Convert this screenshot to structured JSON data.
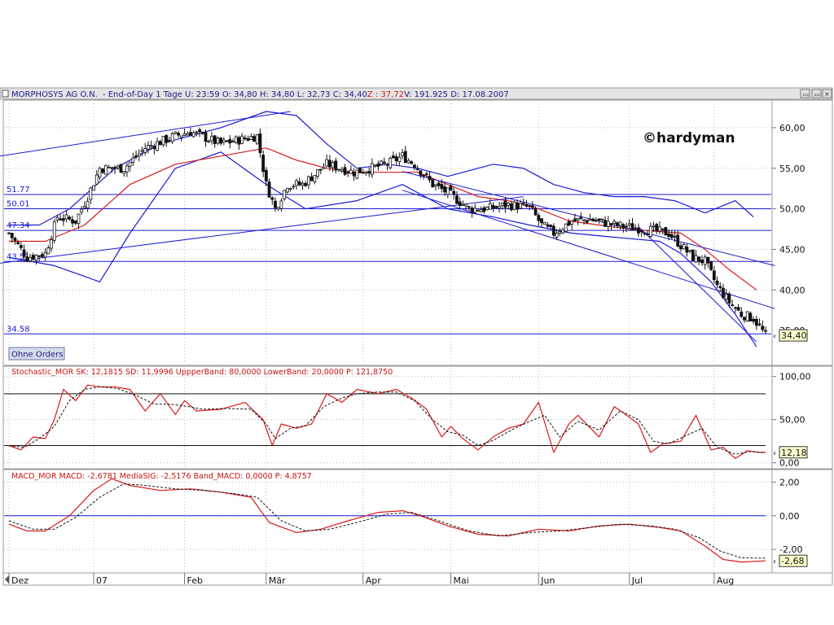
{
  "header": {
    "symbol": "MORPHOSYS AG O.N.",
    "info": " - End-of-Day 1 Tage  U: 23:59  O: 34,80  H: 34,80  L: 32,73  C: 34,40  ",
    "z_text": "Z : 37,72",
    "info2": "  V: 191.925  D: 17.08.2007",
    "buttons": [
      "▭",
      "▭",
      "✕"
    ]
  },
  "watermark": "©hardyman",
  "ohne_orders": "Ohne Orders",
  "colors": {
    "band": "#1a1ad6",
    "ma": "#d81a1a",
    "grid": "#b8b8b8",
    "header_bg": "#e4e4e4",
    "label_bg": "#ffffcc"
  },
  "chart_data": [
    {
      "type": "candlestick",
      "ylim": [
        31,
        63
      ],
      "yticks": [
        40,
        45,
        50,
        55,
        60
      ],
      "ytick_labels": [
        "40,00",
        "45,00",
        "50,00",
        "55,00",
        "60,00"
      ],
      "top_partial_tick": "35,00",
      "last_value_label": "34,40",
      "last_value": 34.4,
      "levels": [
        {
          "label": "51.77",
          "value": 51.77
        },
        {
          "label": "50.01",
          "value": 50.01
        },
        {
          "label": "47.34",
          "value": 47.34
        },
        {
          "label": "43.51",
          "value": 43.51
        },
        {
          "label": "34.58",
          "value": 34.58
        }
      ],
      "x_labels": [
        "Dez",
        "07",
        "Feb",
        "Mär",
        "Apr",
        "Mai",
        "Jun",
        "Jul",
        "Aug"
      ],
      "x_label_positions": [
        0,
        28,
        58,
        85,
        117,
        146,
        175,
        205,
        233
      ],
      "n_bars": 251,
      "close_anchors": [
        [
          0,
          47
        ],
        [
          6,
          44
        ],
        [
          12,
          44.5
        ],
        [
          16,
          49
        ],
        [
          22,
          48.5
        ],
        [
          26,
          51.5
        ],
        [
          30,
          55
        ],
        [
          38,
          55
        ],
        [
          45,
          57.5
        ],
        [
          55,
          59
        ],
        [
          60,
          59.5
        ],
        [
          70,
          58
        ],
        [
          82,
          59
        ],
        [
          85,
          53
        ],
        [
          88,
          50
        ],
        [
          92,
          53
        ],
        [
          97,
          53
        ],
        [
          105,
          55.5
        ],
        [
          114,
          54.5
        ],
        [
          125,
          55.5
        ],
        [
          130,
          56.5
        ],
        [
          134,
          55.5
        ],
        [
          140,
          53
        ],
        [
          145,
          52
        ],
        [
          152,
          50
        ],
        [
          158,
          50
        ],
        [
          165,
          50.5
        ],
        [
          172,
          50.2
        ],
        [
          176,
          48
        ],
        [
          180,
          47
        ],
        [
          186,
          48.5
        ],
        [
          192,
          48.7
        ],
        [
          200,
          48
        ],
        [
          210,
          47.5
        ],
        [
          218,
          47
        ],
        [
          222,
          45.5
        ],
        [
          226,
          44
        ],
        [
          230,
          43.5
        ],
        [
          234,
          40.5
        ],
        [
          238,
          38.5
        ],
        [
          242,
          37
        ],
        [
          246,
          36.5
        ],
        [
          250,
          34.4
        ]
      ],
      "bollinger_upper": [
        [
          0,
          48
        ],
        [
          10,
          48
        ],
        [
          20,
          50
        ],
        [
          35,
          55
        ],
        [
          50,
          58
        ],
        [
          70,
          60
        ],
        [
          85,
          62
        ],
        [
          95,
          61.5
        ],
        [
          105,
          58
        ],
        [
          115,
          55
        ],
        [
          125,
          55.5
        ],
        [
          135,
          55
        ],
        [
          145,
          54
        ],
        [
          160,
          55.5
        ],
        [
          170,
          55
        ],
        [
          180,
          53
        ],
        [
          190,
          52
        ],
        [
          200,
          51.5
        ],
        [
          210,
          51.5
        ],
        [
          220,
          51
        ],
        [
          230,
          49.5
        ],
        [
          240,
          51
        ],
        [
          246,
          49
        ]
      ],
      "bollinger_lower": [
        [
          0,
          44
        ],
        [
          15,
          43
        ],
        [
          30,
          41
        ],
        [
          40,
          47
        ],
        [
          55,
          55
        ],
        [
          70,
          57
        ],
        [
          85,
          53
        ],
        [
          98,
          50
        ],
        [
          115,
          51
        ],
        [
          130,
          53
        ],
        [
          145,
          50
        ],
        [
          160,
          49
        ],
        [
          172,
          48
        ],
        [
          186,
          47
        ],
        [
          200,
          46.5
        ],
        [
          215,
          46
        ],
        [
          222,
          44.5
        ],
        [
          232,
          41
        ],
        [
          240,
          37
        ],
        [
          247,
          33
        ]
      ],
      "moving_average": [
        [
          0,
          46
        ],
        [
          12,
          46
        ],
        [
          25,
          48
        ],
        [
          40,
          53
        ],
        [
          55,
          55.5
        ],
        [
          70,
          56.5
        ],
        [
          85,
          57.5
        ],
        [
          95,
          56
        ],
        [
          105,
          55
        ],
        [
          115,
          54.5
        ],
        [
          125,
          54.5
        ],
        [
          135,
          54.5
        ],
        [
          145,
          53
        ],
        [
          155,
          51.5
        ],
        [
          165,
          51
        ],
        [
          175,
          50
        ],
        [
          185,
          48.5
        ],
        [
          195,
          48
        ],
        [
          205,
          47.5
        ],
        [
          215,
          47.2
        ],
        [
          222,
          47
        ],
        [
          230,
          45
        ],
        [
          238,
          42.5
        ],
        [
          247,
          40
        ]
      ],
      "trendlines": [
        {
          "from": [
            -3,
            56.5
          ],
          "to": [
            93,
            62
          ]
        },
        {
          "from": [
            -3,
            43.3
          ],
          "to": [
            170,
            51.5
          ]
        },
        {
          "from": [
            130,
            54.6
          ],
          "to": [
            253,
            43
          ]
        },
        {
          "from": [
            130,
            52.3
          ],
          "to": [
            253,
            37.7
          ]
        },
        {
          "from": [
            208,
            47.8
          ],
          "to": [
            247,
            33.6
          ]
        }
      ]
    },
    {
      "type": "line",
      "title": "Stochastic_MOR  SK: 12,1815  SD: 11,9996  UppperBand: 80,0000  LowerBand: 20,0000  P: 121,8750",
      "ylim": [
        -5,
        110
      ],
      "yticks": [
        0,
        50,
        100
      ],
      "ytick_labels": [
        "0,00",
        "50,00",
        "100,00"
      ],
      "bands": [
        20,
        80
      ],
      "last_value_label": "12,18",
      "series": [
        {
          "name": "SK",
          "points": [
            [
              0,
              20
            ],
            [
              4,
              15
            ],
            [
              8,
              30
            ],
            [
              12,
              28
            ],
            [
              15,
              50
            ],
            [
              18,
              85
            ],
            [
              22,
              72
            ],
            [
              26,
              90
            ],
            [
              30,
              88
            ],
            [
              35,
              88
            ],
            [
              40,
              85
            ],
            [
              45,
              60
            ],
            [
              50,
              80
            ],
            [
              55,
              56
            ],
            [
              58,
              72
            ],
            [
              62,
              60
            ],
            [
              70,
              62
            ],
            [
              78,
              70
            ],
            [
              84,
              50
            ],
            [
              87,
              20
            ],
            [
              90,
              45
            ],
            [
              95,
              40
            ],
            [
              100,
              45
            ],
            [
              105,
              80
            ],
            [
              110,
              70
            ],
            [
              115,
              85
            ],
            [
              122,
              80
            ],
            [
              128,
              85
            ],
            [
              133,
              75
            ],
            [
              138,
              62
            ],
            [
              143,
              30
            ],
            [
              146,
              42
            ],
            [
              150,
              28
            ],
            [
              155,
              15
            ],
            [
              160,
              30
            ],
            [
              165,
              40
            ],
            [
              170,
              45
            ],
            [
              175,
              70
            ],
            [
              180,
              12
            ],
            [
              185,
              45
            ],
            [
              188,
              55
            ],
            [
              195,
              30
            ],
            [
              200,
              65
            ],
            [
              203,
              58
            ],
            [
              208,
              45
            ],
            [
              212,
              12
            ],
            [
              216,
              22
            ],
            [
              222,
              25
            ],
            [
              227,
              55
            ],
            [
              232,
              15
            ],
            [
              236,
              18
            ],
            [
              240,
              5
            ],
            [
              244,
              14
            ],
            [
              248,
              12
            ],
            [
              250,
              12
            ]
          ]
        },
        {
          "name": "SD",
          "points": [
            [
              0,
              20
            ],
            [
              5,
              18
            ],
            [
              10,
              28
            ],
            [
              15,
              42
            ],
            [
              20,
              72
            ],
            [
              25,
              85
            ],
            [
              30,
              88
            ],
            [
              36,
              86
            ],
            [
              42,
              78
            ],
            [
              48,
              68
            ],
            [
              53,
              68
            ],
            [
              58,
              66
            ],
            [
              64,
              62
            ],
            [
              72,
              63
            ],
            [
              80,
              62
            ],
            [
              85,
              45
            ],
            [
              88,
              28
            ],
            [
              93,
              40
            ],
            [
              98,
              43
            ],
            [
              104,
              65
            ],
            [
              110,
              75
            ],
            [
              115,
              80
            ],
            [
              122,
              82
            ],
            [
              128,
              82
            ],
            [
              134,
              72
            ],
            [
              140,
              50
            ],
            [
              145,
              36
            ],
            [
              150,
              32
            ],
            [
              155,
              20
            ],
            [
              160,
              26
            ],
            [
              166,
              38
            ],
            [
              172,
              48
            ],
            [
              177,
              55
            ],
            [
              182,
              30
            ],
            [
              188,
              48
            ],
            [
              195,
              38
            ],
            [
              202,
              60
            ],
            [
              208,
              50
            ],
            [
              213,
              25
            ],
            [
              218,
              22
            ],
            [
              224,
              32
            ],
            [
              229,
              40
            ],
            [
              234,
              18
            ],
            [
              240,
              10
            ],
            [
              245,
              13
            ],
            [
              250,
              12
            ]
          ]
        }
      ]
    },
    {
      "type": "line",
      "title": "MACD_MOR  MACD: -2,6781  MediaSIG: -2,5176  Band_MACD: 0,0000  P: 4,8757",
      "ylim": [
        -3.3,
        2.6
      ],
      "yticks": [
        -2,
        0,
        2
      ],
      "ytick_labels": [
        "-2,00",
        "0,00",
        "2,00"
      ],
      "band": 0,
      "last_value_label": "-2,68",
      "series": [
        {
          "name": "MACD",
          "points": [
            [
              0,
              -0.5
            ],
            [
              6,
              -0.9
            ],
            [
              12,
              -0.9
            ],
            [
              20,
              0
            ],
            [
              28,
              1.5
            ],
            [
              34,
              2.2
            ],
            [
              40,
              1.8
            ],
            [
              50,
              1.5
            ],
            [
              60,
              1.6
            ],
            [
              70,
              1.4
            ],
            [
              80,
              1.1
            ],
            [
              86,
              -0.4
            ],
            [
              95,
              -1.0
            ],
            [
              103,
              -0.8
            ],
            [
              112,
              -0.3
            ],
            [
              122,
              0.2
            ],
            [
              130,
              0.3
            ],
            [
              136,
              0
            ],
            [
              145,
              -0.6
            ],
            [
              155,
              -1.1
            ],
            [
              165,
              -1.2
            ],
            [
              175,
              -0.8
            ],
            [
              185,
              -0.9
            ],
            [
              195,
              -0.6
            ],
            [
              205,
              -0.5
            ],
            [
              215,
              -0.7
            ],
            [
              222,
              -0.9
            ],
            [
              230,
              -1.8
            ],
            [
              236,
              -2.6
            ],
            [
              242,
              -2.75
            ],
            [
              250,
              -2.68
            ]
          ]
        },
        {
          "name": "MediaSIG",
          "points": [
            [
              0,
              -0.3
            ],
            [
              8,
              -0.8
            ],
            [
              15,
              -0.8
            ],
            [
              22,
              -0.1
            ],
            [
              30,
              1.1
            ],
            [
              38,
              1.9
            ],
            [
              45,
              1.8
            ],
            [
              55,
              1.6
            ],
            [
              65,
              1.5
            ],
            [
              75,
              1.3
            ],
            [
              82,
              1.1
            ],
            [
              90,
              -0.3
            ],
            [
              98,
              -0.9
            ],
            [
              106,
              -0.8
            ],
            [
              115,
              -0.4
            ],
            [
              125,
              0.1
            ],
            [
              133,
              0.2
            ],
            [
              142,
              -0.3
            ],
            [
              152,
              -0.9
            ],
            [
              162,
              -1.2
            ],
            [
              172,
              -1.0
            ],
            [
              182,
              -0.9
            ],
            [
              192,
              -0.7
            ],
            [
              202,
              -0.5
            ],
            [
              212,
              -0.6
            ],
            [
              220,
              -0.8
            ],
            [
              228,
              -1.3
            ],
            [
              235,
              -2.1
            ],
            [
              242,
              -2.5
            ],
            [
              250,
              -2.52
            ]
          ]
        }
      ]
    }
  ]
}
